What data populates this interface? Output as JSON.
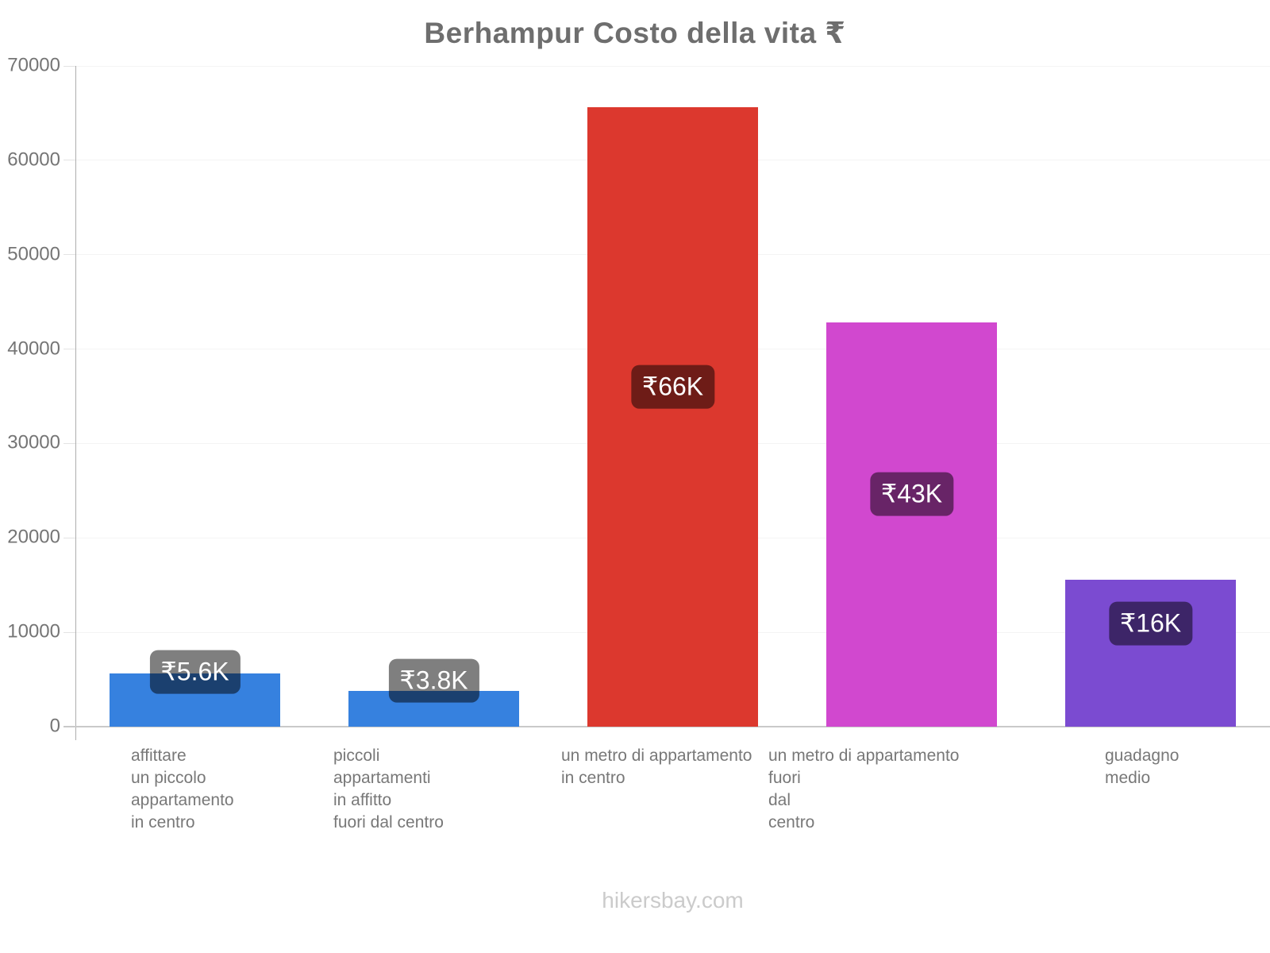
{
  "chart_data": {
    "type": "bar",
    "title": "Berhampur Costo della vita ₹",
    "categories": [
      "affittare\nun piccolo\nappartamento\nin centro",
      "piccoli\nappartamenti\nin affitto\nfuori dal centro",
      "un metro di appartamento\nin centro",
      "un metro di appartamento\nfuori\ndal\ncentro",
      "guadagno\nmedio"
    ],
    "values": [
      5600,
      3800,
      65600,
      42800,
      15600
    ],
    "value_labels": [
      "₹5.6K",
      "₹3.8K",
      "₹66K",
      "₹43K",
      "₹16K"
    ],
    "bar_colors": [
      "#3681df",
      "#3681df",
      "#dc382e",
      "#d148cf",
      "#7b4bd1"
    ],
    "xlabel": "",
    "ylabel": "",
    "ylim": [
      0,
      70000
    ],
    "yticks": [
      0,
      10000,
      20000,
      30000,
      40000,
      50000,
      60000,
      70000
    ],
    "ytick_labels": [
      "0",
      "10000",
      "20000",
      "30000",
      "40000",
      "50000",
      "60000",
      "70000"
    ],
    "grid": "horizontal-light",
    "legend": "none",
    "badge_bg": "rgba(0,0,0,0.5)",
    "badge_text_color": "#ffffff"
  },
  "footer": {
    "text": "hikersbay.com"
  }
}
